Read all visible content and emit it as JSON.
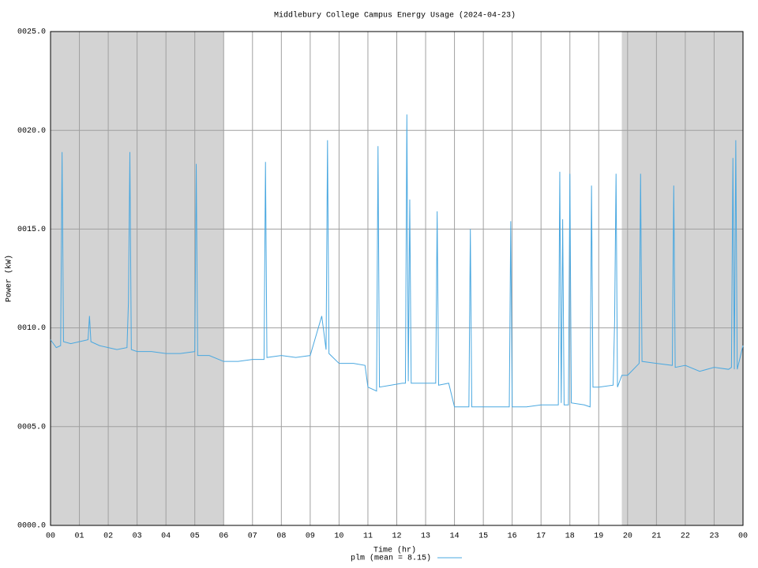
{
  "chart_data": {
    "type": "line",
    "title": "Middlebury College Campus Energy Usage (2024-04-23)",
    "xlabel": "Time (hr)",
    "ylabel": "Power (kW)",
    "xlim": [
      0,
      24
    ],
    "ylim": [
      0,
      25
    ],
    "xticks": [
      {
        "value": 0,
        "label": "00"
      },
      {
        "value": 1,
        "label": "01"
      },
      {
        "value": 2,
        "label": "02"
      },
      {
        "value": 3,
        "label": "03"
      },
      {
        "value": 4,
        "label": "04"
      },
      {
        "value": 5,
        "label": "05"
      },
      {
        "value": 6,
        "label": "06"
      },
      {
        "value": 7,
        "label": "07"
      },
      {
        "value": 8,
        "label": "08"
      },
      {
        "value": 9,
        "label": "09"
      },
      {
        "value": 10,
        "label": "10"
      },
      {
        "value": 11,
        "label": "11"
      },
      {
        "value": 12,
        "label": "12"
      },
      {
        "value": 13,
        "label": "13"
      },
      {
        "value": 14,
        "label": "14"
      },
      {
        "value": 15,
        "label": "15"
      },
      {
        "value": 16,
        "label": "16"
      },
      {
        "value": 17,
        "label": "17"
      },
      {
        "value": 18,
        "label": "18"
      },
      {
        "value": 19,
        "label": "19"
      },
      {
        "value": 20,
        "label": "20"
      },
      {
        "value": 21,
        "label": "21"
      },
      {
        "value": 22,
        "label": "22"
      },
      {
        "value": 23,
        "label": "23"
      },
      {
        "value": 24,
        "label": "00"
      }
    ],
    "yticks": [
      {
        "value": 0,
        "label": "0000.0"
      },
      {
        "value": 5,
        "label": "0005.0"
      },
      {
        "value": 10,
        "label": "0010.0"
      },
      {
        "value": 15,
        "label": "0015.0"
      },
      {
        "value": 20,
        "label": "0020.0"
      },
      {
        "value": 25,
        "label": "0025.0"
      }
    ],
    "grid": true,
    "shaded_ranges": [
      [
        0,
        6
      ],
      [
        19.8,
        24
      ]
    ],
    "shade_color": "#d3d3d3",
    "legend": "bottom",
    "x": [
      0,
      0.2,
      0.35,
      0.4,
      0.45,
      0.7,
      1.0,
      1.3,
      1.35,
      1.4,
      1.7,
      2.0,
      2.3,
      2.65,
      2.7,
      2.75,
      2.8,
      3.0,
      3.5,
      4.0,
      4.5,
      5.0,
      5.05,
      5.1,
      5.5,
      6.0,
      6.5,
      7.0,
      7.4,
      7.45,
      7.5,
      8.0,
      8.5,
      9.0,
      9.4,
      9.55,
      9.6,
      9.65,
      10.0,
      10.5,
      10.9,
      11.0,
      11.3,
      11.35,
      11.4,
      11.8,
      12.2,
      12.3,
      12.35,
      12.4,
      12.45,
      12.5,
      12.55,
      13.0,
      13.35,
      13.4,
      13.45,
      13.8,
      14.0,
      14.5,
      14.55,
      14.6,
      15.0,
      15.5,
      15.9,
      15.95,
      16.0,
      16.5,
      17.0,
      17.6,
      17.65,
      17.7,
      17.75,
      17.8,
      17.95,
      18.0,
      18.05,
      18.5,
      18.7,
      18.75,
      18.8,
      19.0,
      19.5,
      19.55,
      19.6,
      19.65,
      19.8,
      20.0,
      20.4,
      20.45,
      20.5,
      21.0,
      21.55,
      21.6,
      21.65,
      22.0,
      22.5,
      23.0,
      23.5,
      23.6,
      23.65,
      23.7,
      23.75,
      23.8,
      24.0
    ],
    "series": [
      {
        "name": "plm (mean = 8.15)",
        "color": "#4aa8e0",
        "values": [
          9.4,
          9.0,
          9.1,
          18.9,
          9.3,
          9.2,
          9.3,
          9.4,
          10.6,
          9.3,
          9.1,
          9.0,
          8.9,
          9.0,
          11.3,
          18.9,
          8.9,
          8.8,
          8.8,
          8.7,
          8.7,
          8.8,
          18.3,
          8.6,
          8.6,
          8.3,
          8.3,
          8.4,
          8.4,
          18.4,
          8.5,
          8.6,
          8.5,
          8.6,
          10.6,
          8.9,
          19.5,
          8.7,
          8.2,
          8.2,
          8.1,
          7.0,
          6.8,
          19.2,
          7.0,
          7.1,
          7.2,
          7.2,
          20.8,
          7.3,
          16.5,
          7.2,
          7.2,
          7.2,
          7.2,
          15.9,
          7.1,
          7.2,
          6.0,
          6.0,
          15.0,
          6.0,
          6.0,
          6.0,
          6.0,
          15.4,
          6.0,
          6.0,
          6.1,
          6.1,
          17.9,
          6.2,
          15.5,
          6.1,
          6.1,
          17.8,
          6.2,
          6.1,
          6.0,
          17.2,
          7.0,
          7.0,
          7.1,
          10.3,
          17.8,
          7.0,
          7.6,
          7.6,
          8.2,
          17.8,
          8.3,
          8.2,
          8.1,
          17.2,
          8.0,
          8.1,
          7.8,
          8.0,
          7.9,
          8.0,
          18.6,
          7.9,
          19.5,
          7.9,
          9.1
        ]
      }
    ]
  }
}
